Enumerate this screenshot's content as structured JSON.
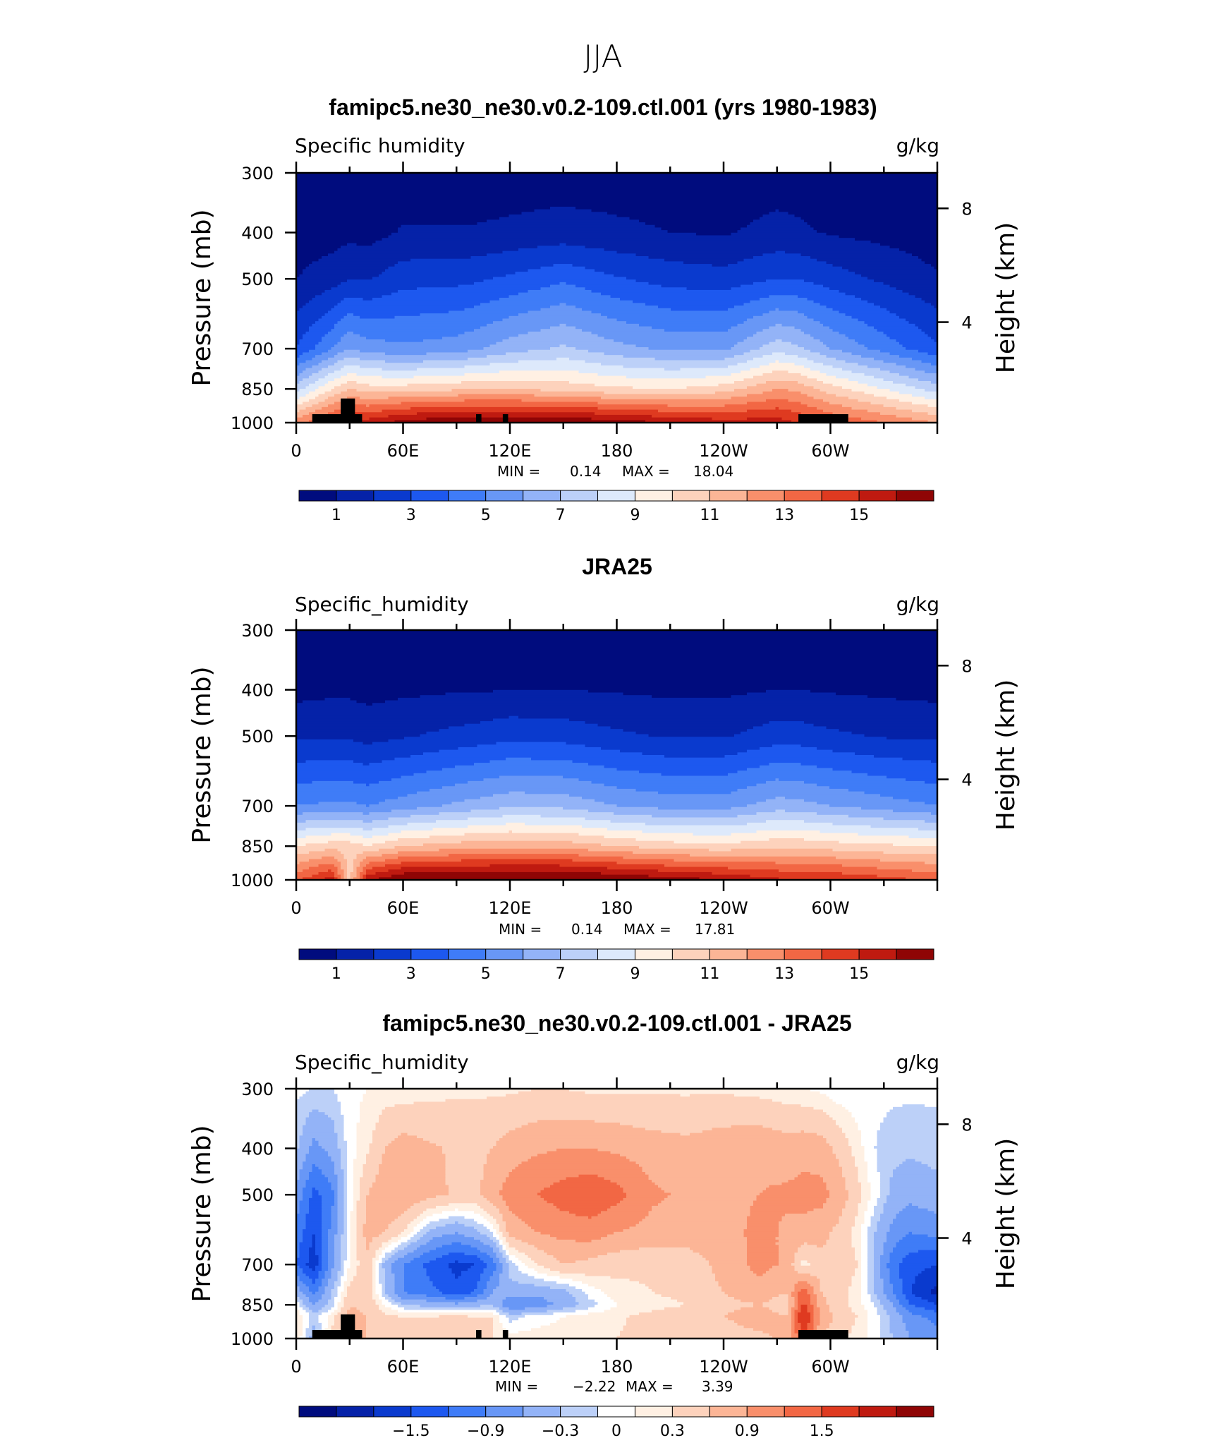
{
  "figure": {
    "title": "JJA",
    "colors": {
      "warm": [
        "#fff0e3",
        "#fdd2bc",
        "#fcb596",
        "#f98f6b",
        "#f26744",
        "#df3a20",
        "#bf1a10",
        "#8f0505"
      ],
      "cool": [
        "#000c7e",
        "#0522a8",
        "#0a3ace",
        "#1d58ef",
        "#3f7cf7",
        "#6897f6",
        "#93b3f7",
        "#bcd0f8",
        "#dde9fb"
      ],
      "land_mask": "#000000"
    },
    "panels": [
      {
        "title": "famipc5.ne30_ne30.v0.2-109.ctl.001 (yrs 1980-1983)",
        "left_label": "Specific humidity",
        "right_label": "g/kg",
        "min_label": "MIN =",
        "min_value": "0.14",
        "max_label": "MAX =",
        "max_value": "18.04",
        "colorbar_labels": [
          "1",
          "3",
          "5",
          "7",
          "9",
          "11",
          "13",
          "15"
        ]
      },
      {
        "title": "JRA25",
        "left_label": "Specific_humidity",
        "right_label": "g/kg",
        "min_label": "MIN =",
        "min_value": "0.14",
        "max_label": "MAX =",
        "max_value": "17.81",
        "colorbar_labels": [
          "1",
          "3",
          "5",
          "7",
          "9",
          "11",
          "13",
          "15"
        ]
      },
      {
        "title": "famipc5.ne30_ne30.v0.2-109.ctl.001 - JRA25",
        "left_label": "Specific_humidity",
        "right_label": "g/kg",
        "min_label": "MIN =",
        "min_value": "−2.22",
        "max_label": "MAX =",
        "max_value": "3.39",
        "colorbar_labels": [
          "−1.5",
          "−0.9",
          "−0.3",
          "0",
          "0.3",
          "0.9",
          "1.5"
        ]
      }
    ]
  },
  "chart_data": [
    {
      "type": "heatmap",
      "title": "famipc5.ne30_ne30.v0.2-109.ctl.001 (yrs 1980-1983)",
      "variable": "Specific humidity",
      "units": "g/kg",
      "xlabel": "",
      "ylabel": "Pressure (mb)",
      "ylabel_right": "Height (km)",
      "x_ticks": [
        "0",
        "60E",
        "120E",
        "180",
        "120W",
        "60W"
      ],
      "y_ticks": [
        "300",
        "400",
        "500",
        "700",
        "850",
        "1000"
      ],
      "y_right_ticks": [
        "8",
        "4"
      ],
      "xlim": [
        0,
        360
      ],
      "ylim": [
        1000,
        300
      ],
      "y_scale": "log",
      "contour_levels": [
        1,
        2,
        3,
        4,
        5,
        6,
        7,
        8,
        9,
        10,
        11,
        12,
        13,
        14,
        15,
        16
      ],
      "colorbar_ticks": [
        1,
        3,
        5,
        7,
        9,
        11,
        13,
        15
      ],
      "min": 0.14,
      "max": 18.04,
      "field": {
        "lon": [
          0,
          20,
          30,
          40,
          60,
          90,
          100,
          120,
          150,
          180,
          210,
          240,
          270,
          280,
          300,
          330,
          360
        ],
        "lev": [
          300,
          400,
          500,
          700,
          850,
          1000
        ],
        "values": [
          [
            0.3,
            0.3,
            0.3,
            0.3,
            0.3,
            0.4,
            0.4,
            0.5,
            0.5,
            0.5,
            0.5,
            0.4,
            0.5,
            0.5,
            0.4,
            0.3,
            0.3
          ],
          [
            0.5,
            0.6,
            0.7,
            0.6,
            1.1,
            1.1,
            1.1,
            1.2,
            1.4,
            1.2,
            1.0,
            0.9,
            1.3,
            1.2,
            0.9,
            0.7,
            0.5
          ],
          [
            1.0,
            1.5,
            2.0,
            1.9,
            2.6,
            2.7,
            2.8,
            3.2,
            3.8,
            3.1,
            2.6,
            2.4,
            3.0,
            3.0,
            2.5,
            1.8,
            1.1
          ],
          [
            3.0,
            5.0,
            6.0,
            5.5,
            5.2,
            5.5,
            5.8,
            6.5,
            7.2,
            6.3,
            5.8,
            5.8,
            7.6,
            7.3,
            6.0,
            4.6,
            3.2
          ],
          [
            7.5,
            10.0,
            11.0,
            10.5,
            10.5,
            10.8,
            11.0,
            11.0,
            10.6,
            10.2,
            10.0,
            10.5,
            12.0,
            11.8,
            10.5,
            9.0,
            7.5
          ],
          [
            12.5,
            14.5,
            15.5,
            15.5,
            16.5,
            17.0,
            17.0,
            17.0,
            17.0,
            16.5,
            16.0,
            15.5,
            15.5,
            15.0,
            14.0,
            13.0,
            12.0
          ]
        ]
      }
    },
    {
      "type": "heatmap",
      "title": "JRA25",
      "variable": "Specific_humidity",
      "units": "g/kg",
      "xlabel": "",
      "ylabel": "Pressure (mb)",
      "ylabel_right": "Height (km)",
      "x_ticks": [
        "0",
        "60E",
        "120E",
        "180",
        "120W",
        "60W"
      ],
      "y_ticks": [
        "300",
        "400",
        "500",
        "700",
        "850",
        "1000"
      ],
      "y_right_ticks": [
        "8",
        "4"
      ],
      "xlim": [
        0,
        360
      ],
      "ylim": [
        1000,
        300
      ],
      "y_scale": "log",
      "contour_levels": [
        1,
        2,
        3,
        4,
        5,
        6,
        7,
        8,
        9,
        10,
        11,
        12,
        13,
        14,
        15,
        16
      ],
      "colorbar_ticks": [
        1,
        3,
        5,
        7,
        9,
        11,
        13,
        15
      ],
      "min": 0.14,
      "max": 17.81,
      "field": {
        "lon": [
          0,
          20,
          30,
          40,
          60,
          90,
          100,
          120,
          150,
          180,
          210,
          240,
          270,
          280,
          300,
          330,
          360
        ],
        "lev": [
          300,
          400,
          500,
          700,
          850,
          1000
        ],
        "values": [
          [
            0.3,
            0.3,
            0.3,
            0.3,
            0.3,
            0.3,
            0.3,
            0.4,
            0.4,
            0.3,
            0.3,
            0.3,
            0.4,
            0.4,
            0.3,
            0.3,
            0.3
          ],
          [
            0.7,
            0.8,
            0.8,
            0.7,
            0.8,
            0.9,
            0.9,
            1.0,
            1.0,
            0.9,
            0.8,
            0.8,
            1.0,
            1.0,
            0.9,
            0.8,
            0.7
          ],
          [
            1.8,
            1.9,
            1.8,
            1.6,
            1.9,
            2.3,
            2.4,
            2.7,
            2.6,
            2.2,
            1.9,
            1.9,
            2.5,
            2.5,
            2.2,
            1.9,
            1.8
          ],
          [
            5.0,
            5.2,
            5.2,
            5.0,
            5.5,
            6.2,
            6.4,
            6.8,
            6.7,
            6.0,
            5.6,
            5.6,
            6.5,
            6.4,
            6.0,
            5.5,
            5.0
          ],
          [
            10.0,
            10.6,
            10.6,
            10.0,
            11.0,
            11.5,
            11.6,
            11.8,
            11.6,
            11.0,
            10.5,
            10.3,
            10.8,
            10.8,
            10.5,
            10.2,
            10.0
          ],
          [
            13.8,
            15.5,
            10.5,
            15.8,
            17.2,
            17.4,
            17.4,
            17.5,
            17.5,
            17.0,
            16.5,
            16.0,
            15.2,
            15.0,
            15.0,
            14.4,
            13.8
          ]
        ]
      }
    },
    {
      "type": "heatmap",
      "title": "famipc5.ne30_ne30.v0.2-109.ctl.001 - JRA25",
      "variable": "Specific_humidity",
      "units": "g/kg",
      "xlabel": "",
      "ylabel": "Pressure (mb)",
      "ylabel_right": "Height (km)",
      "x_ticks": [
        "0",
        "60E",
        "120E",
        "180",
        "120W",
        "60W"
      ],
      "y_ticks": [
        "300",
        "400",
        "500",
        "700",
        "850",
        "1000"
      ],
      "y_right_ticks": [
        "8",
        "4"
      ],
      "xlim": [
        0,
        360
      ],
      "ylim": [
        1000,
        300
      ],
      "y_scale": "log",
      "contour_levels": [
        -2.1,
        -1.8,
        -1.5,
        -1.2,
        -0.9,
        -0.6,
        -0.3,
        -0.1,
        0.1,
        0.3,
        0.6,
        0.9,
        1.2,
        1.5,
        1.8,
        2.1
      ],
      "colorbar_ticks": [
        -1.5,
        -0.9,
        -0.3,
        0,
        0.3,
        0.9,
        1.5
      ],
      "min": -2.22,
      "max": 3.39,
      "field": {
        "lon": [
          0,
          10,
          20,
          30,
          40,
          50,
          60,
          75,
          90,
          100,
          110,
          120,
          135,
          150,
          165,
          180,
          200,
          220,
          240,
          260,
          275,
          285,
          295,
          305,
          315,
          325,
          335,
          345,
          360
        ],
        "lev": [
          300,
          400,
          500,
          600,
          700,
          800,
          850,
          900,
          1000
        ],
        "values": [
          [
            -0.05,
            -0.1,
            -0.1,
            0.05,
            0.1,
            0.15,
            0.15,
            0.2,
            0.25,
            0.25,
            0.25,
            0.25,
            0.3,
            0.3,
            0.25,
            0.25,
            0.25,
            0.25,
            0.25,
            0.2,
            0.15,
            0.1,
            0.05,
            -0.05,
            -0.05,
            -0.05,
            -0.05,
            -0.05,
            -0.05
          ],
          [
            -0.25,
            -0.7,
            -0.5,
            0.0,
            0.25,
            0.6,
            0.75,
            0.65,
            0.55,
            0.5,
            0.6,
            0.75,
            0.85,
            0.9,
            0.9,
            0.85,
            0.75,
            0.7,
            0.8,
            0.85,
            0.75,
            0.8,
            0.75,
            0.5,
            0.2,
            -0.1,
            -0.2,
            -0.25,
            -0.2
          ],
          [
            -0.7,
            -1.3,
            -1.0,
            0.0,
            0.6,
            0.85,
            0.9,
            0.7,
            0.55,
            0.5,
            0.8,
            1.05,
            1.2,
            1.35,
            1.45,
            1.3,
            0.95,
            0.85,
            0.8,
            0.9,
            0.95,
            1.0,
            1.0,
            0.8,
            0.4,
            0.0,
            -0.4,
            -0.5,
            -0.4
          ],
          [
            -1.0,
            -1.5,
            -0.8,
            0.05,
            0.75,
            0.6,
            0.3,
            -0.4,
            -0.6,
            -0.4,
            -0.1,
            0.7,
            0.9,
            1.0,
            1.05,
            0.9,
            0.8,
            0.75,
            0.75,
            1.0,
            0.85,
            0.8,
            0.7,
            0.5,
            0.2,
            -0.3,
            -0.7,
            -0.9,
            -0.8
          ],
          [
            -1.2,
            -1.7,
            -0.7,
            0.1,
            0.5,
            -0.4,
            -0.9,
            -1.3,
            -1.6,
            -1.5,
            -1.1,
            -0.2,
            0.3,
            0.6,
            0.5,
            0.4,
            0.35,
            0.45,
            0.7,
            1.0,
            0.85,
            0.2,
            0.5,
            0.5,
            0.3,
            -0.4,
            -1.1,
            -1.4,
            -1.5
          ],
          [
            -0.4,
            -1.0,
            -0.3,
            0.4,
            0.5,
            -0.3,
            -0.9,
            -1.1,
            -1.4,
            -1.2,
            -0.6,
            -0.4,
            -0.5,
            -0.4,
            0.0,
            0.2,
            0.3,
            0.4,
            0.6,
            0.8,
            0.6,
            1.4,
            0.6,
            0.4,
            0.2,
            -0.3,
            -0.9,
            -1.5,
            -1.9
          ],
          [
            0.0,
            -0.6,
            -0.2,
            0.6,
            0.5,
            0.1,
            -0.3,
            -0.4,
            -0.5,
            -0.4,
            -0.3,
            -0.9,
            -0.8,
            -0.5,
            -0.2,
            0.1,
            0.2,
            0.3,
            0.5,
            0.6,
            0.4,
            1.6,
            0.7,
            0.4,
            0.2,
            -0.1,
            -0.6,
            -1.2,
            -1.5
          ],
          [
            0.3,
            -0.2,
            0.2,
            0.7,
            0.6,
            0.35,
            0.3,
            0.3,
            0.35,
            0.3,
            0.3,
            -0.2,
            0.0,
            0.1,
            0.2,
            0.25,
            0.4,
            0.5,
            0.6,
            0.8,
            0.6,
            1.9,
            0.8,
            0.5,
            0.3,
            0.0,
            -0.4,
            -0.8,
            -1.0
          ],
          [
            0.3,
            -0.5,
            0.4,
            0.7,
            0.6,
            0.5,
            0.5,
            0.5,
            0.45,
            0.4,
            0.3,
            0.2,
            0.2,
            0.2,
            0.3,
            0.3,
            0.4,
            0.4,
            0.4,
            0.5,
            0.7,
            1.5,
            0.6,
            0.4,
            0.2,
            0.0,
            -0.3,
            -0.6,
            -0.8
          ]
        ]
      }
    }
  ]
}
